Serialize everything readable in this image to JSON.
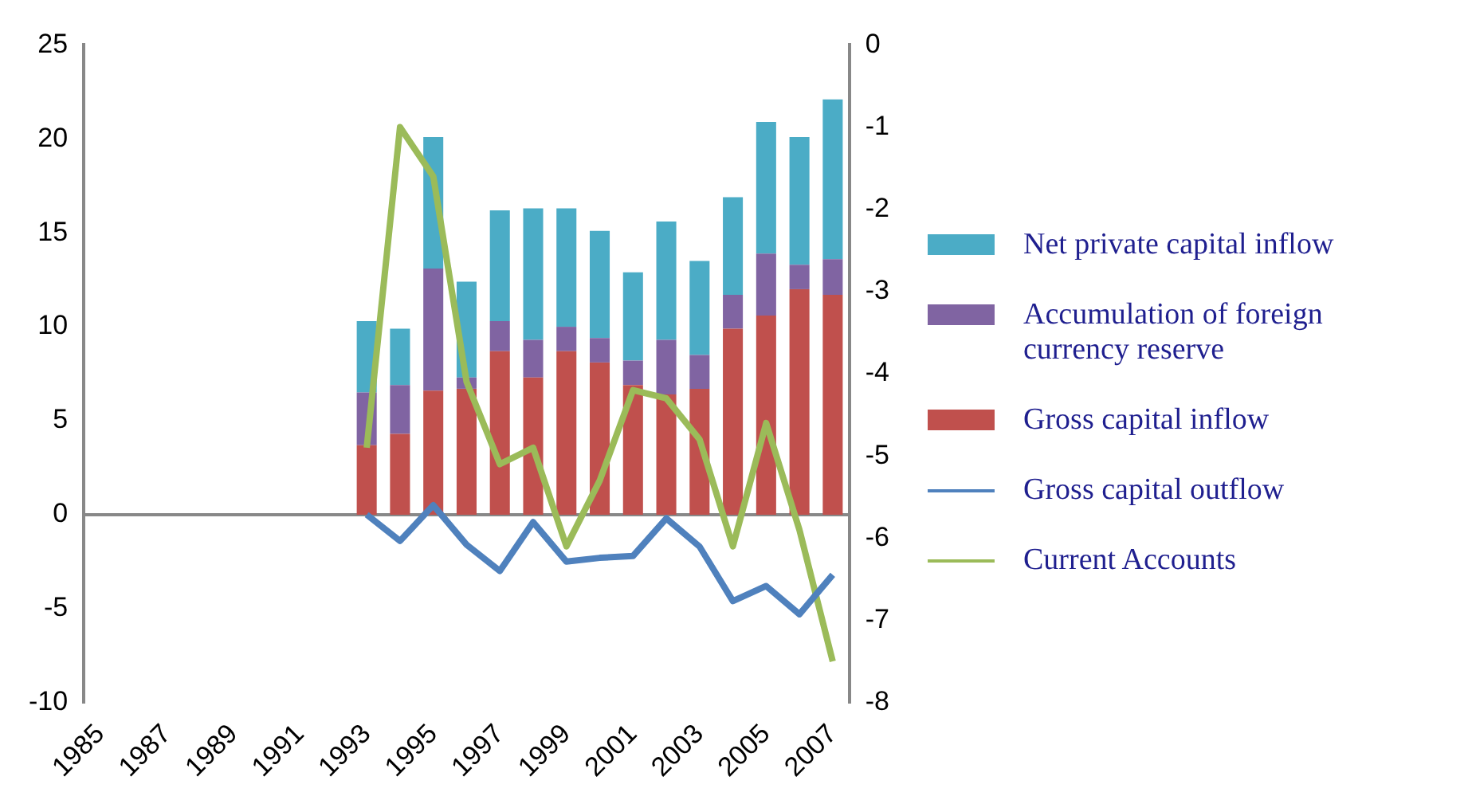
{
  "chart_data": {
    "type": "bar",
    "stacked": true,
    "categories": [
      "1985",
      null,
      "1987",
      null,
      "1989",
      null,
      "1991",
      null,
      "1993",
      null,
      "1995",
      null,
      "1997",
      null,
      "1999",
      null,
      "2001",
      null,
      "2003",
      null,
      "2005",
      null,
      "2007"
    ],
    "series": [
      {
        "name": "Gross capital inflow",
        "color": "#c0504d",
        "values": [
          null,
          null,
          null,
          null,
          null,
          null,
          null,
          null,
          3.7,
          4.3,
          6.6,
          6.7,
          8.7,
          7.3,
          8.7,
          8.1,
          6.9,
          6.4,
          6.7,
          9.9,
          10.6,
          12.0,
          11.7
        ]
      },
      {
        "name": "Accumulation of foreign currency reserve",
        "color": "#8064a2",
        "values": [
          null,
          null,
          null,
          null,
          null,
          null,
          null,
          null,
          2.8,
          2.6,
          6.5,
          0.6,
          1.6,
          2.0,
          1.3,
          1.3,
          1.3,
          2.9,
          1.8,
          1.8,
          3.3,
          1.3,
          1.9
        ]
      },
      {
        "name": "Net private capital inflow",
        "color": "#4bacc6",
        "values": [
          null,
          null,
          null,
          null,
          null,
          null,
          null,
          null,
          3.8,
          3.0,
          7.0,
          5.1,
          5.9,
          7.0,
          6.3,
          5.7,
          4.7,
          6.3,
          5.0,
          5.2,
          7.0,
          6.8,
          8.5
        ]
      },
      {
        "name": "Gross capital outflow",
        "type": "line",
        "color": "#4f81bd",
        "values": [
          null,
          null,
          null,
          null,
          null,
          null,
          null,
          null,
          0,
          -1.4,
          0.5,
          -1.6,
          -3.0,
          -0.4,
          -2.5,
          -2.3,
          -2.2,
          -0.2,
          -1.7,
          -4.6,
          -3.8,
          -5.3,
          -3.2
        ]
      },
      {
        "name": "Current Accounts",
        "type": "line",
        "axis": "y2",
        "color": "#9bbb59",
        "values": [
          null,
          null,
          null,
          null,
          null,
          null,
          null,
          null,
          -4.9,
          -1.0,
          -1.6,
          -4.1,
          -5.1,
          -4.9,
          -6.1,
          -5.3,
          -4.2,
          -4.3,
          -4.8,
          -6.1,
          -4.6,
          -5.9,
          -7.5
        ]
      }
    ],
    "ylim": [
      -10,
      25
    ],
    "yticks": [
      -10,
      -5,
      0,
      5,
      10,
      15,
      20,
      25
    ],
    "y2lim": [
      -8,
      0
    ],
    "y2ticks": [
      -8,
      -7,
      -6,
      -5,
      -4,
      -3,
      -2,
      -1,
      0
    ],
    "ref_lines": [
      {
        "axis": "y",
        "value": 0,
        "color": "#888888"
      }
    ],
    "grid": false,
    "legend": "right"
  }
}
